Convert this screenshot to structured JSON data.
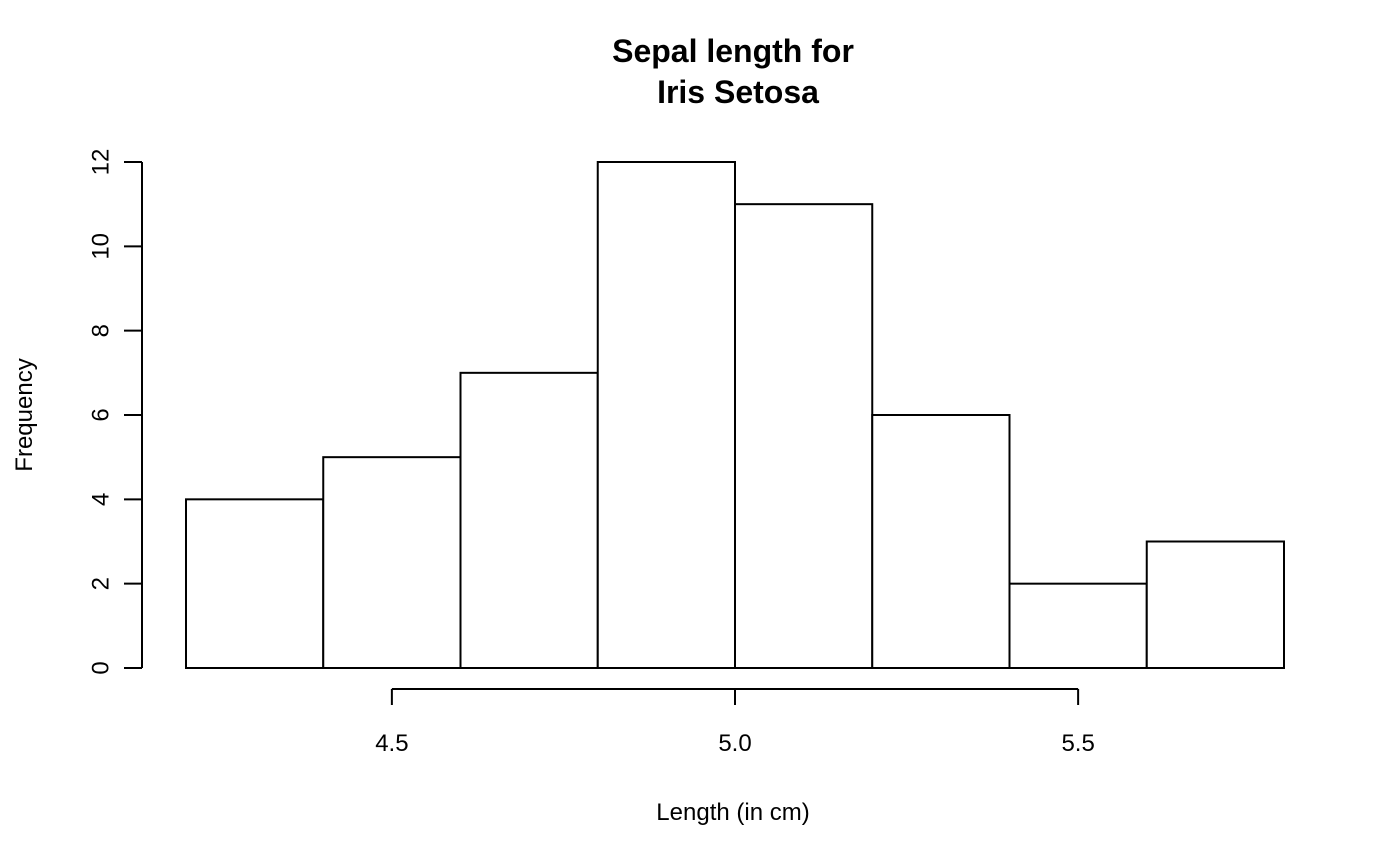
{
  "chart_data": {
    "type": "bar",
    "subtype": "histogram",
    "title": [
      "Sepal length for",
      "Iris Setosa"
    ],
    "xlabel": "Length (in cm)",
    "ylabel": "Frequency",
    "bins": [
      {
        "start": 4.2,
        "end": 4.4,
        "count": 4
      },
      {
        "start": 4.4,
        "end": 4.6,
        "count": 5
      },
      {
        "start": 4.6,
        "end": 4.8,
        "count": 7
      },
      {
        "start": 4.8,
        "end": 5.0,
        "count": 12
      },
      {
        "start": 5.0,
        "end": 5.2,
        "count": 11
      },
      {
        "start": 5.2,
        "end": 5.4,
        "count": 6
      },
      {
        "start": 5.4,
        "end": 5.6,
        "count": 2
      },
      {
        "start": 5.6,
        "end": 5.8,
        "count": 3
      }
    ],
    "xticks": [
      "4.5",
      "5.0",
      "5.5"
    ],
    "yticks": [
      "0",
      "2",
      "4",
      "6",
      "8",
      "10",
      "12"
    ],
    "xlim": [
      4.2,
      5.8
    ],
    "ylim": [
      0,
      12
    ],
    "grid": false,
    "legend": "none",
    "colors": {
      "bar_fill": "#ffffff",
      "bar_stroke": "#000000"
    }
  }
}
